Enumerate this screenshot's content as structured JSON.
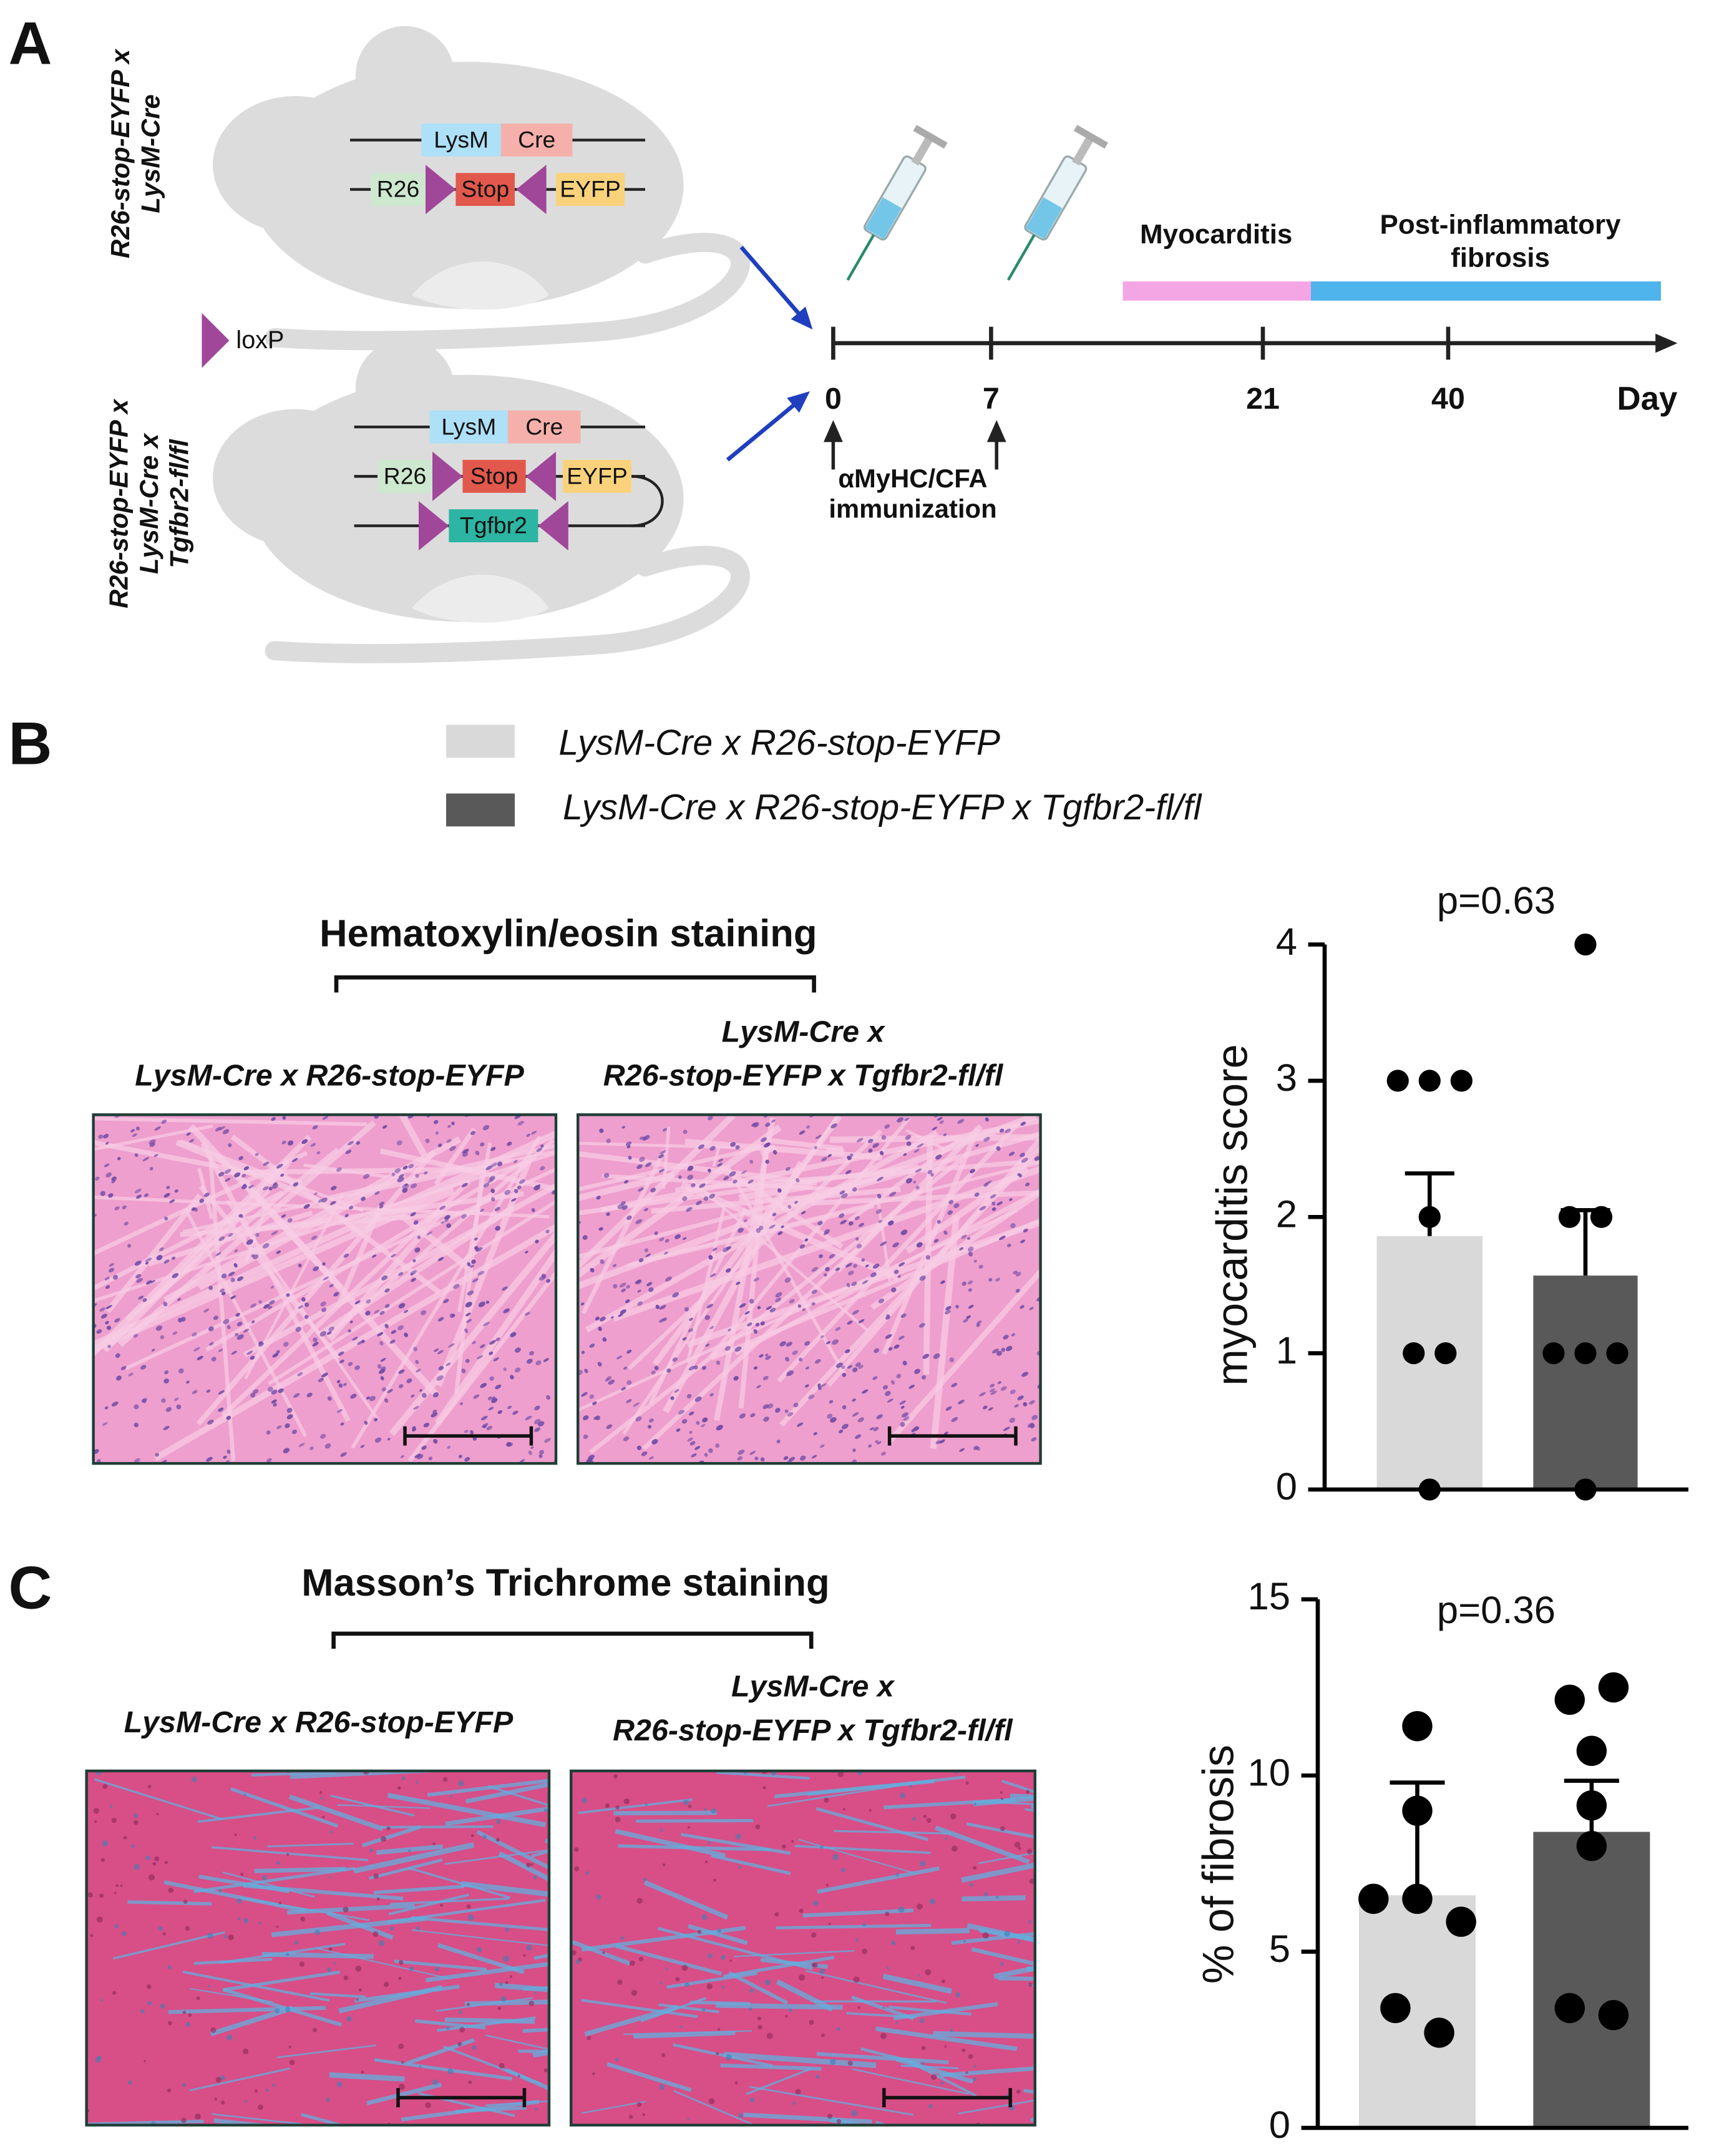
{
  "panel_labels": [
    "A",
    "B",
    "C"
  ],
  "schematic": {
    "mice": [
      {
        "label_lines": [
          "R26-stop-EYFP x",
          "LysM-Cre"
        ],
        "genes": {
          "lysm": "LysM",
          "cre": "Cre",
          "r26": "R26",
          "stop": "Stop",
          "eyfp": "EYFP"
        }
      },
      {
        "label_lines": [
          "R26-stop-EYFP x",
          "LysM-Cre x",
          "Tgfbr2-fl/fl"
        ],
        "genes": {
          "lysm": "LysM",
          "cre": "Cre",
          "r26": "R26",
          "stop": "Stop",
          "eyfp": "EYFP",
          "tgfbr2": "Tgfbr2"
        }
      }
    ],
    "loxp": "loxP"
  },
  "timeline": {
    "phase_1": "Myocarditis",
    "phase_2_lines": [
      "Post-inflammatory",
      "fibrosis"
    ],
    "days": [
      "0",
      "7",
      "21",
      "40"
    ],
    "unit": "Day",
    "immunization_lines": [
      "αMyHC/CFA",
      "immunization"
    ]
  },
  "legend": [
    {
      "label": "LysM-Cre x R26-stop-EYFP",
      "color": "#d9d9d9"
    },
    {
      "label": "LysM-Cre x R26-stop-EYFP x Tgfbr2-fl/fl",
      "color": "#595959"
    }
  ],
  "stainings": [
    {
      "title": "Hematoxylin/eosin staining",
      "groups": [
        [
          "LysM-Cre x R26-stop-EYFP"
        ],
        [
          "LysM-Cre x",
          "R26-stop-EYFP x Tgfbr2-fl/fl"
        ]
      ]
    },
    {
      "title": "Masson’s Trichrome staining",
      "groups": [
        [
          "LysM-Cre x R26-stop-EYFP"
        ],
        [
          "LysM-Cre x",
          "R26-stop-EYFP x Tgfbr2-fl/fl"
        ]
      ]
    }
  ],
  "chart_data": [
    {
      "type": "bar",
      "ylabel": "myocarditis score",
      "annotation": "p=0.63",
      "categories": [
        null,
        null
      ],
      "values": [
        1.86,
        1.57
      ],
      "errors": [
        0.46,
        0.48
      ],
      "points": [
        [
          3,
          3,
          3,
          2,
          1,
          1,
          0
        ],
        [
          4,
          2,
          2,
          1,
          1,
          1,
          0
        ]
      ],
      "colors": [
        "#d9d9d9",
        "#595959"
      ],
      "ylim": [
        0,
        4
      ],
      "yticks": [
        0,
        1,
        2,
        3,
        4
      ]
    },
    {
      "type": "bar",
      "ylabel": "% of fibrosis",
      "annotation": "p=0.36",
      "categories": [
        null,
        null
      ],
      "values": [
        6.6,
        8.4
      ],
      "errors": [
        3.2,
        1.45
      ],
      "points": [
        [
          11.4,
          9.0,
          6.5,
          6.5,
          5.85,
          3.4,
          2.7
        ],
        [
          12.15,
          12.5,
          10.7,
          9.15,
          8.0,
          3.4,
          3.2
        ]
      ],
      "colors": [
        "#d9d9d9",
        "#595959"
      ],
      "ylim": [
        0,
        15
      ],
      "yticks": [
        0,
        5,
        10,
        15
      ]
    }
  ]
}
